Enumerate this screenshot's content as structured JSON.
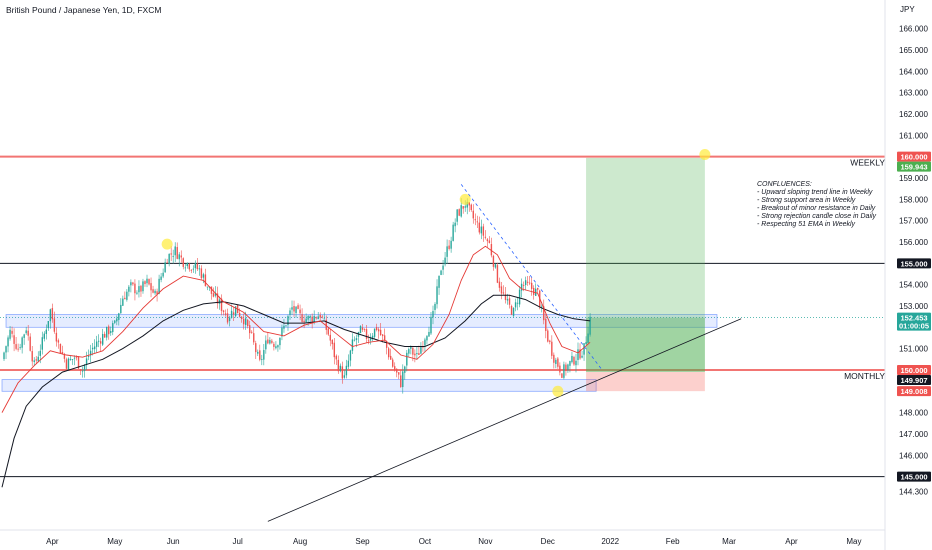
{
  "chart_data": {
    "type": "candlestick",
    "title": "British Pound / Japanese Yen, 1D, FXCM",
    "currency": "JPY",
    "ylim": [
      143.8,
      167.0
    ],
    "y_ticks": [
      {
        "value": 166.0,
        "label": "166.000"
      },
      {
        "value": 165.0,
        "label": "165.000"
      },
      {
        "value": 164.0,
        "label": "164.000"
      },
      {
        "value": 163.0,
        "label": "163.000"
      },
      {
        "value": 162.0,
        "label": "162.000"
      },
      {
        "value": 161.0,
        "label": "161.000"
      },
      {
        "value": 159.0,
        "label": "159.000"
      },
      {
        "value": 158.0,
        "label": "158.000"
      },
      {
        "value": 157.0,
        "label": "157.000"
      },
      {
        "value": 156.0,
        "label": "156.000"
      },
      {
        "value": 154.0,
        "label": "154.000"
      },
      {
        "value": 153.0,
        "label": "153.000"
      },
      {
        "value": 151.0,
        "label": "151.000"
      },
      {
        "value": 148.0,
        "label": "148.000"
      },
      {
        "value": 147.0,
        "label": "147.000"
      },
      {
        "value": 146.0,
        "label": "146.000"
      },
      {
        "value": 144.3,
        "label": "144.300"
      }
    ],
    "x_labels": [
      "Apr",
      "May",
      "Jun",
      "Jul",
      "Aug",
      "Sep",
      "Oct",
      "Nov",
      "Dec",
      "2022",
      "Feb",
      "Mar",
      "Apr",
      "May"
    ],
    "x_range": [
      0,
      432
    ],
    "x_ticks": [
      {
        "bar": 25,
        "label": "Apr"
      },
      {
        "bar": 56,
        "label": "May"
      },
      {
        "bar": 85,
        "label": "Jun"
      },
      {
        "bar": 117,
        "label": "Jul"
      },
      {
        "bar": 148,
        "label": "Aug"
      },
      {
        "bar": 179,
        "label": "Sep"
      },
      {
        "bar": 210,
        "label": "Oct"
      },
      {
        "bar": 240,
        "label": "Nov"
      },
      {
        "bar": 271,
        "label": "Dec"
      },
      {
        "bar": 302,
        "label": "2022"
      },
      {
        "bar": 333,
        "label": "Feb"
      },
      {
        "bar": 361,
        "label": "Mar"
      },
      {
        "bar": 392,
        "label": "Apr"
      },
      {
        "bar": 423,
        "label": "May"
      }
    ],
    "price_path": [
      [
        0,
        150.5
      ],
      [
        4,
        151.8
      ],
      [
        8,
        151.0
      ],
      [
        12,
        152.0
      ],
      [
        16,
        150.2
      ],
      [
        20,
        151.3
      ],
      [
        24,
        152.8
      ],
      [
        28,
        151.2
      ],
      [
        32,
        150.3
      ],
      [
        36,
        150.6
      ],
      [
        40,
        150.0
      ],
      [
        44,
        150.9
      ],
      [
        50,
        151.6
      ],
      [
        56,
        152.1
      ],
      [
        60,
        153.4
      ],
      [
        64,
        153.9
      ],
      [
        68,
        153.7
      ],
      [
        72,
        154.1
      ],
      [
        76,
        153.5
      ],
      [
        82,
        155.3
      ],
      [
        86,
        155.6
      ],
      [
        90,
        155.1
      ],
      [
        94,
        154.9
      ],
      [
        98,
        154.7
      ],
      [
        104,
        153.6
      ],
      [
        108,
        153.1
      ],
      [
        112,
        152.5
      ],
      [
        116,
        152.9
      ],
      [
        120,
        152.4
      ],
      [
        124,
        151.5
      ],
      [
        128,
        150.3
      ],
      [
        132,
        151.5
      ],
      [
        136,
        151.2
      ],
      [
        140,
        152.0
      ],
      [
        144,
        152.9
      ],
      [
        148,
        152.5
      ],
      [
        152,
        152.4
      ],
      [
        158,
        152.6
      ],
      [
        162,
        151.7
      ],
      [
        166,
        150.4
      ],
      [
        170,
        149.6
      ],
      [
        174,
        151.2
      ],
      [
        178,
        151.8
      ],
      [
        182,
        151.5
      ],
      [
        186,
        152.0
      ],
      [
        190,
        151.3
      ],
      [
        194,
        150.2
      ],
      [
        198,
        149.4
      ],
      [
        202,
        151.0
      ],
      [
        206,
        150.6
      ],
      [
        210,
        151.6
      ],
      [
        214,
        152.5
      ],
      [
        218,
        154.8
      ],
      [
        222,
        155.9
      ],
      [
        226,
        157.3
      ],
      [
        230,
        157.8
      ],
      [
        234,
        157.1
      ],
      [
        238,
        156.5
      ],
      [
        242,
        155.9
      ],
      [
        246,
        154.3
      ],
      [
        250,
        153.2
      ],
      [
        254,
        152.7
      ],
      [
        258,
        154.0
      ],
      [
        262,
        153.9
      ],
      [
        266,
        153.6
      ],
      [
        270,
        151.8
      ],
      [
        274,
        150.6
      ],
      [
        278,
        149.9
      ],
      [
        282,
        150.3
      ],
      [
        286,
        150.7
      ],
      [
        289,
        151.0
      ],
      [
        292,
        152.45
      ]
    ],
    "ema_fast_path": [
      [
        0,
        148.0
      ],
      [
        8,
        149.4
      ],
      [
        16,
        150.2
      ],
      [
        24,
        150.9
      ],
      [
        32,
        150.7
      ],
      [
        40,
        150.6
      ],
      [
        50,
        150.9
      ],
      [
        60,
        151.8
      ],
      [
        70,
        152.9
      ],
      [
        80,
        153.8
      ],
      [
        90,
        154.4
      ],
      [
        100,
        154.2
      ],
      [
        110,
        153.2
      ],
      [
        120,
        152.7
      ],
      [
        130,
        151.8
      ],
      [
        140,
        151.6
      ],
      [
        150,
        152.1
      ],
      [
        158,
        152.3
      ],
      [
        166,
        151.7
      ],
      [
        174,
        151.1
      ],
      [
        182,
        151.3
      ],
      [
        190,
        151.4
      ],
      [
        198,
        150.7
      ],
      [
        206,
        150.5
      ],
      [
        214,
        151.2
      ],
      [
        222,
        152.6
      ],
      [
        228,
        154.2
      ],
      [
        234,
        155.4
      ],
      [
        240,
        155.8
      ],
      [
        246,
        155.4
      ],
      [
        252,
        154.3
      ],
      [
        258,
        153.8
      ],
      [
        266,
        153.6
      ],
      [
        272,
        152.2
      ],
      [
        278,
        151.1
      ],
      [
        286,
        150.8
      ],
      [
        292,
        151.3
      ]
    ],
    "ema_slow_path": [
      [
        0,
        144.5
      ],
      [
        6,
        146.8
      ],
      [
        12,
        148.3
      ],
      [
        20,
        149.2
      ],
      [
        30,
        149.9
      ],
      [
        40,
        150.2
      ],
      [
        50,
        150.5
      ],
      [
        60,
        151.0
      ],
      [
        70,
        151.6
      ],
      [
        80,
        152.3
      ],
      [
        90,
        152.8
      ],
      [
        100,
        153.1
      ],
      [
        110,
        153.2
      ],
      [
        120,
        153.0
      ],
      [
        130,
        152.6
      ],
      [
        140,
        152.2
      ],
      [
        150,
        152.2
      ],
      [
        160,
        152.3
      ],
      [
        170,
        151.9
      ],
      [
        180,
        151.6
      ],
      [
        190,
        151.3
      ],
      [
        200,
        151.1
      ],
      [
        210,
        151.1
      ],
      [
        220,
        151.5
      ],
      [
        230,
        152.3
      ],
      [
        238,
        153.1
      ],
      [
        244,
        153.5
      ],
      [
        252,
        153.5
      ],
      [
        260,
        153.3
      ],
      [
        268,
        152.9
      ],
      [
        276,
        152.6
      ],
      [
        284,
        152.4
      ],
      [
        292,
        152.3
      ]
    ],
    "levels": [
      {
        "value": 160.0,
        "label": "WEEKLY",
        "color": "#ef5350"
      },
      {
        "value": 155.0,
        "label": "",
        "color": "#131722"
      },
      {
        "value": 150.0,
        "label": "MONTHLY",
        "color": "#ef5350"
      },
      {
        "value": 145.0,
        "label": "",
        "color": "#131722"
      }
    ],
    "support_zones": [
      {
        "from": 152.0,
        "to": 152.6,
        "x_start": 2,
        "x_end": 355
      },
      {
        "from": 149.0,
        "to": 149.55,
        "x_start": 0,
        "x_end": 295
      }
    ],
    "trendline": {
      "x1": 132,
      "y1": 142.9,
      "x2": 367,
      "y2": 152.4
    },
    "resistance_line": {
      "x1": 228,
      "y1": 158.7,
      "x2": 298,
      "y2": 150.0
    },
    "position": {
      "x_start": 290,
      "x_end": 349,
      "target": 159.943,
      "entry": 149.907,
      "stop": 149.008,
      "current": 152.453
    },
    "swing_markers": [
      {
        "bar": 82,
        "value": 155.9
      },
      {
        "bar": 230,
        "value": 158.0
      },
      {
        "bar": 276,
        "value": 149.0
      },
      {
        "bar": 349,
        "value": 160.1
      }
    ],
    "price_tags": [
      {
        "value": 160.0,
        "label": "160.000",
        "bg": "#ef5350",
        "fg": "#ffffff"
      },
      {
        "value": 159.943,
        "label": "159.943",
        "bg": "#4caf50",
        "fg": "#ffffff"
      },
      {
        "value": 155.0,
        "label": "155.000",
        "bg": "#131722",
        "fg": "#ffffff"
      },
      {
        "value": 152.453,
        "label": "152.453",
        "sub": "01:00:05",
        "bg": "#26a69a",
        "fg": "#ffffff"
      },
      {
        "value": 150.0,
        "label": "150.000",
        "bg": "#ef5350",
        "fg": "#ffffff"
      },
      {
        "value": 149.907,
        "label": "149.907",
        "bg": "#131722",
        "fg": "#ffffff"
      },
      {
        "value": 149.008,
        "label": "149.008",
        "bg": "#ef5350",
        "fg": "#ffffff"
      },
      {
        "value": 145.0,
        "label": "145.000",
        "bg": "#131722",
        "fg": "#ffffff"
      }
    ],
    "notes": {
      "heading": "CONFLUENCES:",
      "lines": [
        "- Upward sloping trend line in Weekly",
        "- Strong support area in Weekly",
        "- Breakout of minor resistance in Daily",
        "- Strong rejection candle close in Daily",
        "- Respecting 51 EMA in Weekly"
      ]
    },
    "colors": {
      "up": "#26a69a",
      "down": "#ef5350",
      "ema_fast": "#e53935",
      "ema_slow": "#131722",
      "zone": "#2962ff",
      "profit": "#4caf50",
      "loss": "#f44336",
      "marker": "#ffeb3b"
    }
  }
}
